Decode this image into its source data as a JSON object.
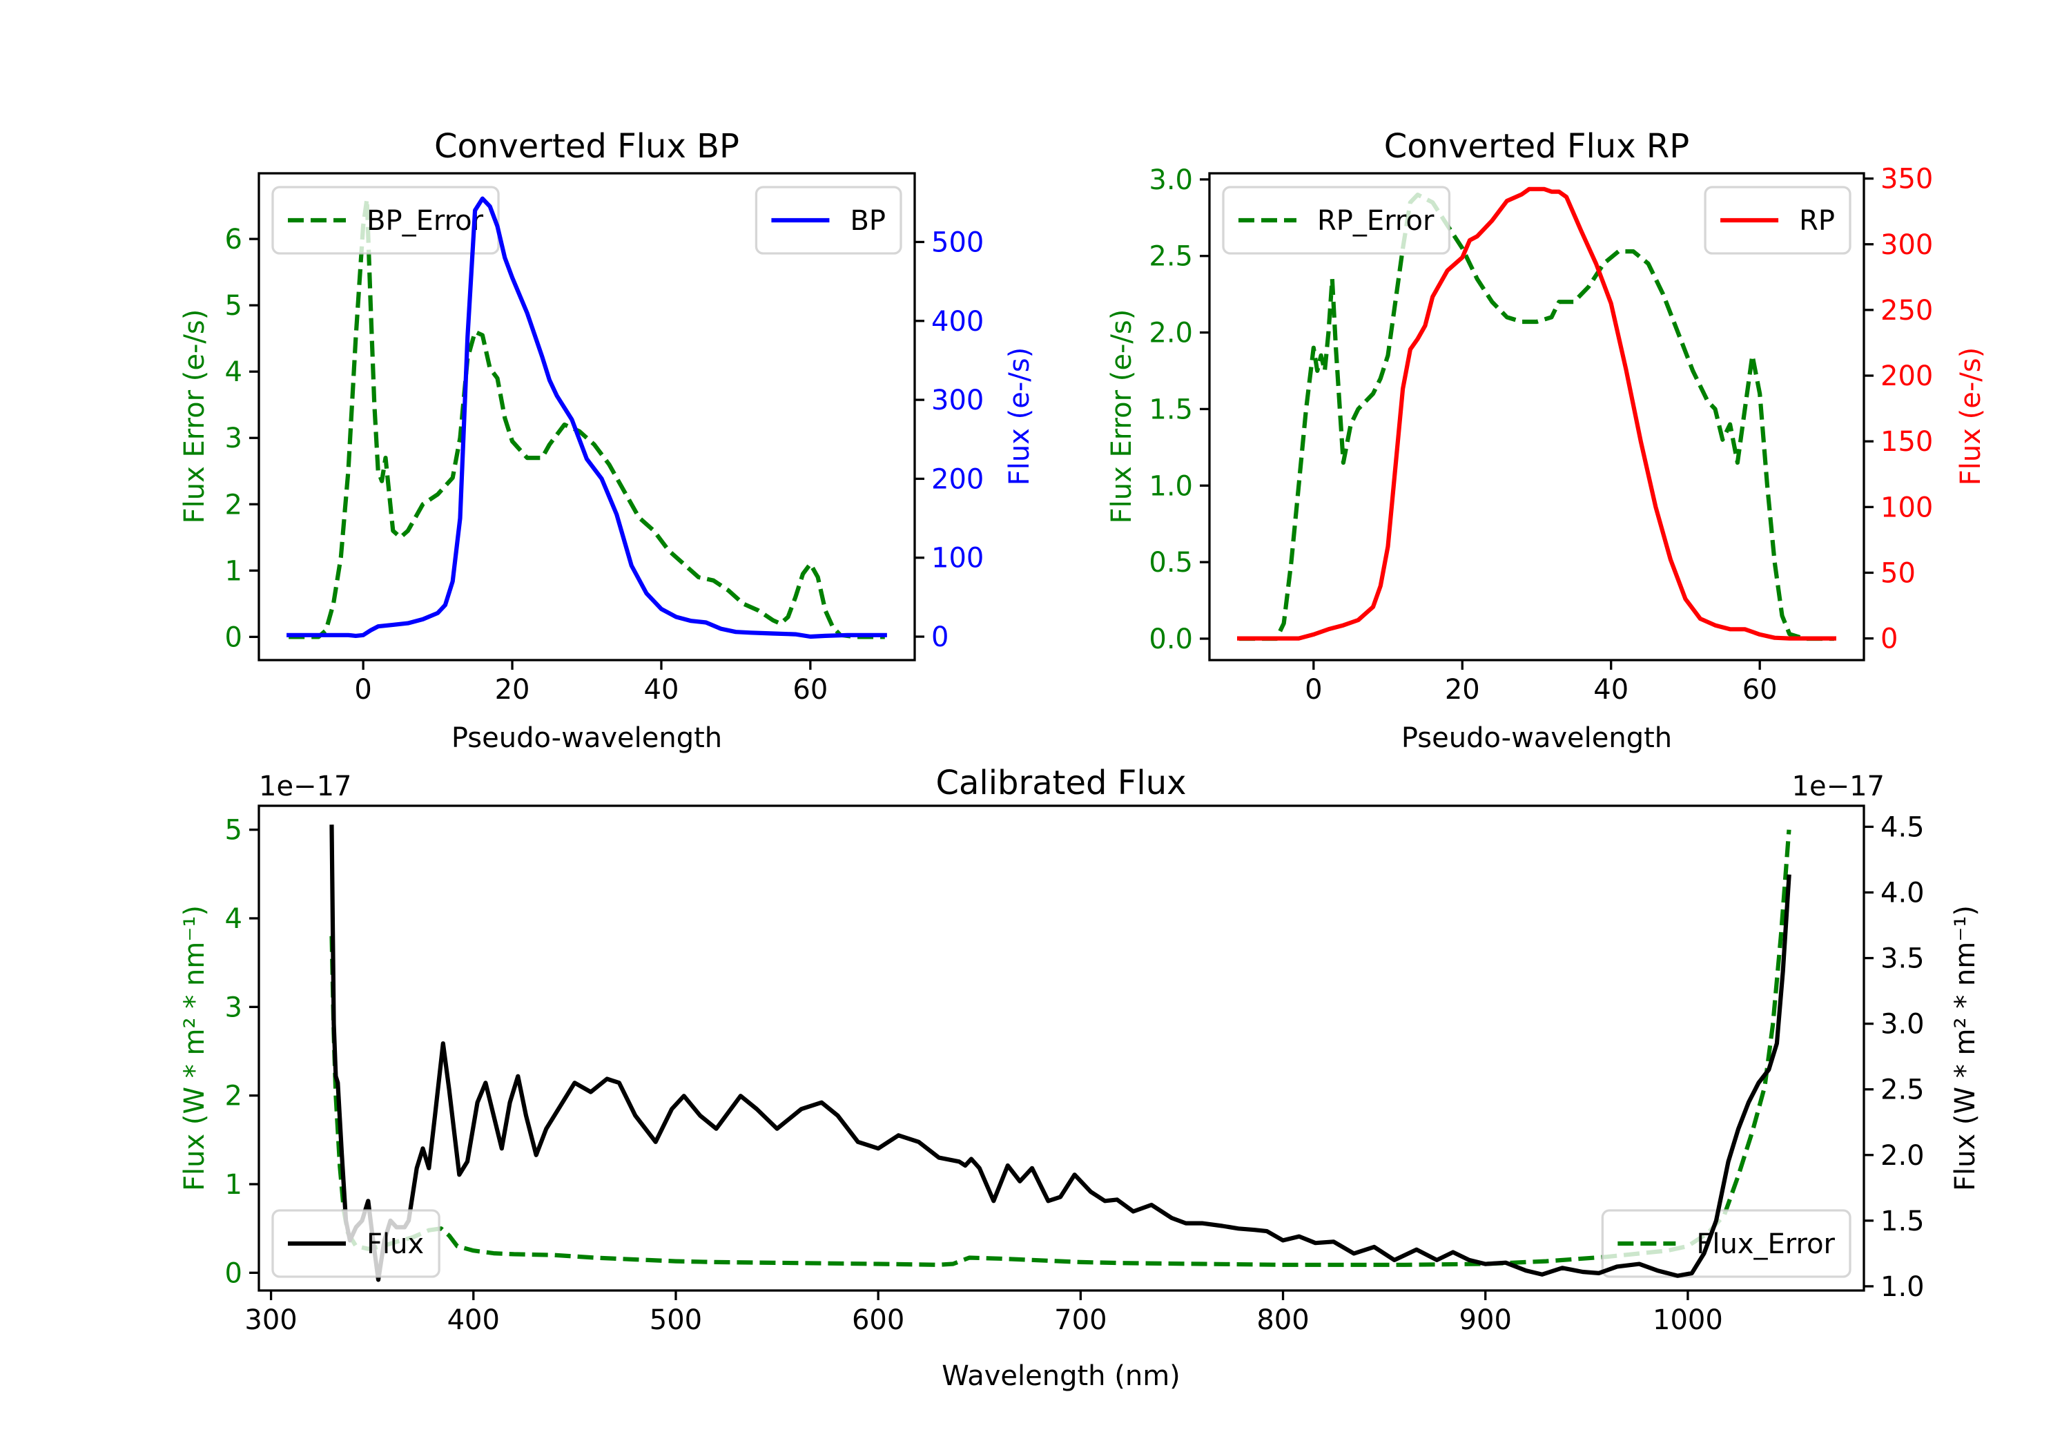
{
  "chart_data": [
    {
      "id": "bp",
      "type": "line",
      "title": "Converted Flux BP",
      "xlabel": "Pseudo-wavelength",
      "ylabel_left": "Flux Error (e-/s)",
      "ylabel_right": "Flux (e-/s)",
      "xlim": [
        -14,
        74
      ],
      "ylim_left": [
        -0.35,
        6.99
      ],
      "ylim_right": [
        -29.7,
        587
      ],
      "xticks": [
        0,
        20,
        40,
        60
      ],
      "yticks_left": [
        0,
        1,
        2,
        3,
        4,
        5,
        6
      ],
      "yticks_right": [
        0,
        100,
        200,
        300,
        400,
        500
      ],
      "left_axis_color": "#008000",
      "right_axis_color": "#0000ff",
      "grid": false,
      "series": [
        {
          "name": "BP_Error",
          "axis": "left",
          "color": "#008000",
          "style": "dashed",
          "legend": "upper-left",
          "x": [
            -10,
            -8,
            -6,
            -5,
            -4,
            -3,
            -2,
            -1,
            0,
            0.5,
            1,
            1.5,
            2,
            2.5,
            3,
            4,
            5,
            6,
            8,
            10,
            12,
            13,
            14,
            15,
            16,
            17,
            18,
            19,
            20,
            22,
            24,
            25,
            27,
            29,
            31,
            33,
            35,
            37,
            39,
            41,
            43,
            45,
            47,
            49,
            51,
            53,
            55,
            56,
            57,
            58,
            59,
            60,
            61,
            62,
            63,
            64,
            66,
            70
          ],
          "y": [
            0,
            0,
            0,
            0.1,
            0.5,
            1.2,
            2.5,
            4.5,
            6.2,
            6.6,
            5.0,
            3.5,
            2.5,
            2.35,
            2.7,
            1.6,
            1.5,
            1.6,
            2.0,
            2.15,
            2.4,
            3.0,
            4.2,
            4.6,
            4.55,
            4.05,
            3.9,
            3.3,
            2.95,
            2.7,
            2.7,
            2.9,
            3.2,
            3.1,
            2.9,
            2.6,
            2.2,
            1.8,
            1.6,
            1.3,
            1.1,
            0.9,
            0.85,
            0.7,
            0.5,
            0.4,
            0.25,
            0.2,
            0.3,
            0.6,
            0.95,
            1.1,
            0.9,
            0.4,
            0.15,
            0.03,
            0,
            0
          ]
        },
        {
          "name": "BP",
          "axis": "right",
          "color": "#0000ff",
          "style": "solid",
          "legend": "upper-right",
          "x": [
            -10,
            -6,
            -2,
            -1,
            0,
            1,
            2,
            4,
            6,
            8,
            10,
            11,
            12,
            13,
            14,
            15,
            16,
            17,
            18,
            19,
            20,
            22,
            24,
            25,
            26,
            28,
            30,
            32,
            34,
            36,
            38,
            40,
            42,
            44,
            46,
            48,
            50,
            52,
            55,
            58,
            60,
            62,
            65,
            70
          ],
          "y": [
            2,
            2,
            2,
            1,
            2,
            8,
            13,
            15,
            17,
            22,
            30,
            40,
            70,
            150,
            380,
            540,
            555,
            545,
            520,
            480,
            455,
            410,
            355,
            325,
            305,
            275,
            225,
            200,
            155,
            90,
            55,
            35,
            25,
            20,
            18,
            10,
            6,
            5,
            4,
            3,
            0,
            1,
            2,
            2
          ]
        }
      ]
    },
    {
      "id": "rp",
      "type": "line",
      "title": "Converted Flux RP",
      "xlabel": "Pseudo-wavelength",
      "ylabel_left": "Flux Error (e-/s)",
      "ylabel_right": "Flux (e-/s)",
      "xlim": [
        -14,
        74
      ],
      "ylim_left": [
        -0.14,
        3.04
      ],
      "ylim_right": [
        -16.5,
        354
      ],
      "xticks": [
        0,
        20,
        40,
        60
      ],
      "yticks_left": [
        "0.0",
        "0.5",
        "1.0",
        "1.5",
        "2.0",
        "2.5",
        "3.0"
      ],
      "yticks_right": [
        0,
        50,
        100,
        150,
        200,
        250,
        300,
        350
      ],
      "left_axis_color": "#008000",
      "right_axis_color": "#ff0000",
      "grid": false,
      "series": [
        {
          "name": "RP_Error",
          "axis": "left",
          "color": "#008000",
          "style": "dashed",
          "legend": "upper-left",
          "x": [
            -10,
            -6,
            -5,
            -4,
            -3,
            -2,
            -1,
            0,
            0.5,
            1,
            1.5,
            2,
            2.5,
            3,
            4,
            5,
            6,
            7,
            8,
            9,
            10,
            11,
            12,
            13,
            14,
            16,
            18,
            20,
            22,
            24,
            26,
            28,
            30,
            32,
            33,
            35,
            37,
            39,
            41,
            43,
            45,
            47,
            49,
            51,
            53,
            54,
            55,
            56,
            57,
            58,
            59,
            60,
            61,
            62,
            63,
            64,
            66,
            70
          ],
          "y": [
            0,
            0,
            0,
            0.1,
            0.5,
            1.0,
            1.5,
            1.9,
            1.75,
            1.85,
            1.75,
            2.0,
            2.35,
            1.9,
            1.15,
            1.4,
            1.5,
            1.55,
            1.6,
            1.7,
            1.85,
            2.2,
            2.55,
            2.85,
            2.9,
            2.85,
            2.7,
            2.55,
            2.35,
            2.2,
            2.1,
            2.07,
            2.07,
            2.1,
            2.2,
            2.2,
            2.3,
            2.45,
            2.53,
            2.53,
            2.45,
            2.25,
            2.0,
            1.75,
            1.55,
            1.5,
            1.3,
            1.4,
            1.15,
            1.5,
            1.85,
            1.6,
            1.0,
            0.5,
            0.15,
            0.03,
            0,
            0
          ]
        },
        {
          "name": "RP",
          "axis": "right",
          "color": "#ff0000",
          "style": "solid",
          "legend": "upper-right",
          "x": [
            -10,
            -2,
            0,
            2,
            4,
            6,
            8,
            9,
            10,
            11,
            12,
            13,
            14,
            15,
            16,
            18,
            20,
            21,
            22,
            24,
            26,
            28,
            29,
            31,
            32,
            33,
            34,
            36,
            38,
            40,
            42,
            44,
            46,
            48,
            50,
            52,
            54,
            56,
            58,
            60,
            62,
            64,
            70
          ],
          "y": [
            0,
            0,
            3,
            7,
            10,
            14,
            24,
            40,
            70,
            130,
            190,
            220,
            228,
            238,
            260,
            280,
            290,
            303,
            306,
            318,
            333,
            338,
            342,
            342,
            340,
            340,
            336,
            310,
            285,
            255,
            205,
            150,
            100,
            60,
            30,
            15,
            10,
            7,
            7,
            3,
            0.5,
            0,
            0
          ]
        }
      ]
    },
    {
      "id": "calibrated",
      "type": "line",
      "title": "Calibrated Flux",
      "xlabel": "Wavelength (nm)",
      "ylabel_left": "Flux (W * m² * nm⁻¹)",
      "ylabel_right": "Flux (W * m² * nm⁻¹)",
      "offset_left": "1e−17",
      "offset_right": "1e−17",
      "xlim": [
        294,
        1087
      ],
      "ylim_left": [
        -0.2,
        5.27
      ],
      "ylim_right": [
        0.968,
        4.66
      ],
      "xticks": [
        300,
        400,
        500,
        600,
        700,
        800,
        900,
        1000
      ],
      "yticks_left": [
        0,
        1,
        2,
        3,
        4,
        5
      ],
      "yticks_right": [
        "1.0",
        "1.5",
        "2.0",
        "2.5",
        "3.0",
        "3.5",
        "4.0",
        "4.5"
      ],
      "left_axis_color": "#008000",
      "right_axis_color": "#000000",
      "grid": false,
      "series": [
        {
          "name": "Flux_Error",
          "axis": "left",
          "color": "#008000",
          "style": "dashed",
          "legend": "lower-right",
          "x": [
            330,
            331,
            332,
            334,
            336,
            338,
            342,
            348,
            355,
            362,
            370,
            378,
            384,
            388,
            392,
            400,
            410,
            420,
            440,
            460,
            480,
            500,
            520,
            560,
            600,
            630,
            637,
            645,
            660,
            700,
            720,
            760,
            800,
            860,
            900,
            930,
            960,
            990,
            1000,
            1010,
            1018,
            1025,
            1032,
            1038,
            1042,
            1046,
            1050
          ],
          "y": [
            3.8,
            2.7,
            2.0,
            1.2,
            0.7,
            0.45,
            0.3,
            0.27,
            0.3,
            0.35,
            0.4,
            0.48,
            0.5,
            0.42,
            0.3,
            0.25,
            0.22,
            0.21,
            0.2,
            0.17,
            0.15,
            0.13,
            0.12,
            0.11,
            0.1,
            0.09,
            0.1,
            0.17,
            0.16,
            0.12,
            0.11,
            0.1,
            0.09,
            0.09,
            0.1,
            0.13,
            0.18,
            0.25,
            0.3,
            0.45,
            0.65,
            1.1,
            1.6,
            2.1,
            2.8,
            3.8,
            5.0
          ]
        },
        {
          "name": "Flux",
          "axis": "right",
          "color": "#000000",
          "style": "solid",
          "legend": "lower-left",
          "x": [
            330,
            331,
            332,
            333,
            335,
            337,
            339,
            342,
            345,
            348,
            350,
            353,
            356,
            359,
            362,
            366,
            368,
            372,
            375,
            378,
            381,
            385,
            388,
            393,
            397,
            402,
            406,
            410,
            414,
            418,
            422,
            426,
            431,
            436,
            442,
            450,
            458,
            466,
            472,
            480,
            490,
            498,
            504,
            512,
            520,
            532,
            540,
            550,
            562,
            572,
            580,
            590,
            600,
            610,
            620,
            630,
            640,
            643,
            646,
            650,
            657,
            664,
            670,
            676,
            684,
            690,
            697,
            705,
            712,
            718,
            726,
            735,
            745,
            752,
            760,
            770,
            778,
            786,
            792,
            800,
            808,
            816,
            825,
            835,
            845,
            855,
            866,
            876,
            884,
            892,
            900,
            910,
            920,
            928,
            938,
            948,
            956,
            965,
            976,
            985,
            995,
            1002,
            1008,
            1014,
            1020,
            1025,
            1030,
            1035,
            1040,
            1044,
            1047,
            1050
          ],
          "y": [
            4.5,
            3.0,
            2.6,
            2.55,
            2.0,
            1.5,
            1.35,
            1.45,
            1.5,
            1.65,
            1.4,
            1.05,
            1.35,
            1.5,
            1.45,
            1.45,
            1.5,
            1.9,
            2.05,
            1.9,
            2.3,
            2.85,
            2.5,
            1.85,
            1.95,
            2.4,
            2.55,
            2.3,
            2.05,
            2.4,
            2.6,
            2.3,
            2.0,
            2.2,
            2.35,
            2.55,
            2.48,
            2.58,
            2.55,
            2.3,
            2.1,
            2.35,
            2.45,
            2.3,
            2.2,
            2.45,
            2.35,
            2.2,
            2.35,
            2.4,
            2.3,
            2.1,
            2.05,
            2.15,
            2.1,
            1.98,
            1.95,
            1.92,
            1.97,
            1.9,
            1.65,
            1.92,
            1.8,
            1.9,
            1.65,
            1.68,
            1.85,
            1.72,
            1.65,
            1.66,
            1.57,
            1.62,
            1.52,
            1.48,
            1.48,
            1.46,
            1.44,
            1.43,
            1.42,
            1.35,
            1.38,
            1.33,
            1.34,
            1.25,
            1.3,
            1.2,
            1.28,
            1.2,
            1.26,
            1.2,
            1.17,
            1.18,
            1.12,
            1.09,
            1.14,
            1.11,
            1.1,
            1.15,
            1.17,
            1.12,
            1.08,
            1.1,
            1.25,
            1.5,
            1.95,
            2.2,
            2.4,
            2.55,
            2.65,
            2.85,
            3.4,
            4.12
          ]
        }
      ]
    }
  ]
}
